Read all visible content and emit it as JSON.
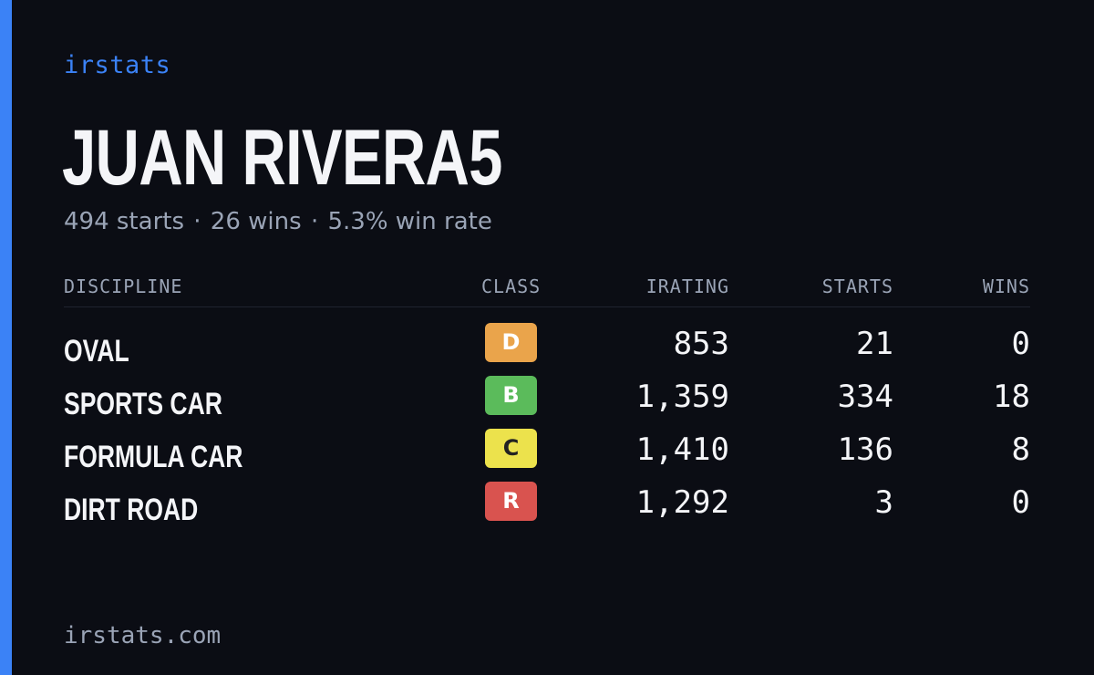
{
  "brand": "irstats",
  "driver": {
    "name": "JUAN RIVERA5"
  },
  "summary": {
    "starts": "494 starts",
    "wins": "26 wins",
    "win_rate": "5.3% win rate",
    "separator": "·"
  },
  "table": {
    "headers": {
      "discipline": "DISCIPLINE",
      "class": "CLASS",
      "irating": "IRATING",
      "starts": "STARTS",
      "wins": "WINS"
    },
    "rows": [
      {
        "discipline": "OVAL",
        "class": "D",
        "class_color": "#eaa44b",
        "class_text_color": "#ffffff",
        "irating": "853",
        "starts": "21",
        "wins": "0"
      },
      {
        "discipline": "SPORTS CAR",
        "class": "B",
        "class_color": "#5bbb5b",
        "class_text_color": "#ffffff",
        "irating": "1,359",
        "starts": "334",
        "wins": "18"
      },
      {
        "discipline": "FORMULA CAR",
        "class": "C",
        "class_color": "#ece24c",
        "class_text_color": "#222222",
        "irating": "1,410",
        "starts": "136",
        "wins": "8"
      },
      {
        "discipline": "DIRT ROAD",
        "class": "R",
        "class_color": "#d9534f",
        "class_text_color": "#ffffff",
        "irating": "1,292",
        "starts": "3",
        "wins": "0"
      }
    ]
  },
  "footer": {
    "url": "irstats.com"
  },
  "colors": {
    "accent": "#3b82f6",
    "background": "#0b0d14"
  }
}
